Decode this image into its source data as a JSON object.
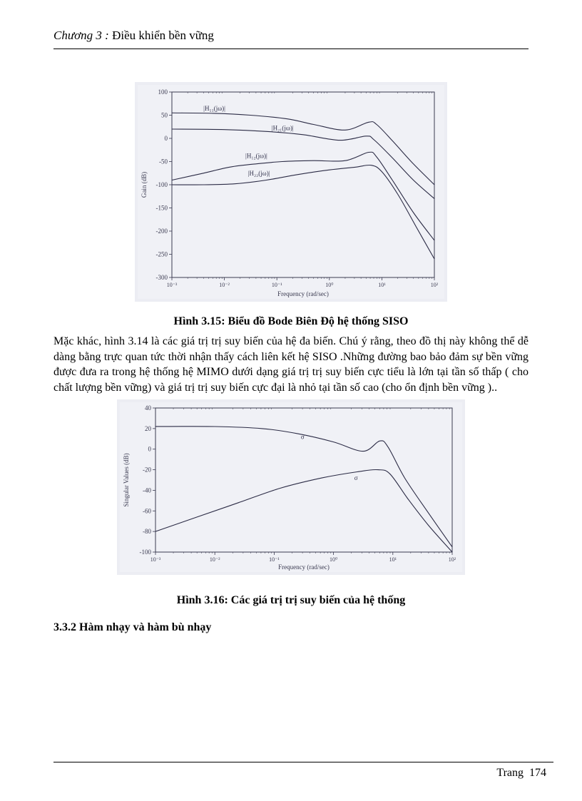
{
  "header": {
    "chapter_label": "Chương 3 :",
    "chapter_title": " Điều khiển bền vững"
  },
  "figure1": {
    "caption": "Hình 3.15: Biểu đồ Bode Biên Độ hệ thống SISO",
    "bg": "#ecedf3",
    "plot_bg": "#f0f1f6",
    "axis_color": "#3a3a50",
    "curve_color": "#2b2b45",
    "x_label": "Frequency (rad/sec)",
    "y_label": "Gain (dB)",
    "y_ticks": [
      "100",
      "50",
      "0",
      "-50",
      "-100",
      "-150",
      "-200",
      "-250",
      "-300"
    ],
    "y_range": [
      -300,
      100
    ],
    "x_ticks": [
      "10⁻³",
      "10⁻²",
      "10⁻¹",
      "10⁰",
      "10¹",
      "10²"
    ],
    "x_range_dec": [
      -3,
      2
    ],
    "series": {
      "H11": {
        "label": "|H₁₁(jω)|",
        "label_pos_dec": [
          -2.4,
          60
        ],
        "pts": [
          [
            -3,
            55
          ],
          [
            -2.2,
            54
          ],
          [
            -1.5,
            50
          ],
          [
            -0.8,
            42
          ],
          [
            -0.3,
            30
          ],
          [
            0.3,
            18
          ],
          [
            0.75,
            35
          ],
          [
            0.9,
            30
          ],
          [
            1.2,
            -5
          ],
          [
            1.6,
            -55
          ],
          [
            2,
            -100
          ]
        ]
      },
      "H21": {
        "label": "|H₂₁(jω)|",
        "label_pos_dec": [
          -1.1,
          18
        ],
        "pts": [
          [
            -3,
            20
          ],
          [
            -2,
            19
          ],
          [
            -1.2,
            15
          ],
          [
            -0.5,
            8
          ],
          [
            0.2,
            -4
          ],
          [
            0.7,
            5
          ],
          [
            0.85,
            -3
          ],
          [
            1.2,
            -42
          ],
          [
            1.6,
            -90
          ],
          [
            2,
            -130
          ]
        ]
      },
      "H12": {
        "label": "|H₁₂(jω)|",
        "label_pos_dec": [
          -1.6,
          -42
        ],
        "pts": [
          [
            -3,
            -90
          ],
          [
            -2.4,
            -75
          ],
          [
            -1.9,
            -62
          ],
          [
            -1.4,
            -55
          ],
          [
            -0.9,
            -50
          ],
          [
            -0.3,
            -48
          ],
          [
            0.3,
            -48
          ],
          [
            0.75,
            -30
          ],
          [
            0.9,
            -40
          ],
          [
            1.2,
            -90
          ],
          [
            1.6,
            -160
          ],
          [
            2,
            -220
          ]
        ]
      },
      "H22": {
        "label": "|H₂₂(jω)|",
        "label_pos_dec": [
          -1.55,
          -80
        ],
        "pts": [
          [
            -3,
            -100
          ],
          [
            -2.4,
            -100
          ],
          [
            -1.8,
            -98
          ],
          [
            -1.2,
            -90
          ],
          [
            -0.6,
            -78
          ],
          [
            0,
            -68
          ],
          [
            0.5,
            -62
          ],
          [
            0.8,
            -58
          ],
          [
            1.0,
            -72
          ],
          [
            1.3,
            -120
          ],
          [
            1.65,
            -190
          ],
          [
            2,
            -260
          ]
        ]
      }
    }
  },
  "paragraph1": "Mặc khác, hình 3.14 là các giá trị trị suy biến của hệ đa biến. Chú ý rằng, theo đồ thị này không thể dễ dàng  bằng trực quan tức thời nhận thấy cách liên kết hệ SISO .Những đường bao bảo đảm sự bền vững được đưa ra trong hệ thống hệ MIMO dưới dạng giá trị trị suy biến cực tiểu là lớn tại tần số thấp ( cho chất lượng bền vững) và  giá trị trị suy biến cực đại là nhỏ tại tần số cao (cho ổn định bền vững )..",
  "figure2": {
    "caption": "Hình 3.16: Các giá trị trị suy biến của hệ thống",
    "bg": "#ecedf3",
    "plot_bg": "#f0f1f6",
    "axis_color": "#3a3a50",
    "curve_color": "#2b2b45",
    "x_label": "Frequency (rad/sec)",
    "y_label": "Singular Values (dB)",
    "y_ticks": [
      "40",
      "20",
      "0",
      "-20",
      "-40",
      "-60",
      "-80",
      "-100"
    ],
    "y_range": [
      -100,
      40
    ],
    "x_ticks": [
      "10⁻³",
      "10⁻²",
      "10⁻¹",
      "10⁰",
      "10¹",
      "10²"
    ],
    "x_range_dec": [
      -3,
      2
    ],
    "series": {
      "sigma_max": {
        "label": "σ̄",
        "label_pos_dec": [
          -0.55,
          10
        ],
        "pts": [
          [
            -3,
            22
          ],
          [
            -2,
            22
          ],
          [
            -1.2,
            20
          ],
          [
            -0.6,
            15
          ],
          [
            0,
            7
          ],
          [
            0.5,
            -2
          ],
          [
            0.78,
            8
          ],
          [
            0.92,
            2
          ],
          [
            1.2,
            -28
          ],
          [
            1.6,
            -62
          ],
          [
            2,
            -95
          ]
        ]
      },
      "sigma_min": {
        "label": "σ",
        "label_pos_dec": [
          0.35,
          -30
        ],
        "pts": [
          [
            -3,
            -80
          ],
          [
            -2.3,
            -66
          ],
          [
            -1.6,
            -52
          ],
          [
            -0.9,
            -38
          ],
          [
            -0.2,
            -28
          ],
          [
            0.4,
            -22
          ],
          [
            0.75,
            -20
          ],
          [
            0.95,
            -24
          ],
          [
            1.25,
            -48
          ],
          [
            1.6,
            -74
          ],
          [
            2,
            -100
          ]
        ]
      }
    }
  },
  "section_heading": "3.3.2 Hàm nhạy và hàm bù nhạy",
  "footer": {
    "page_label": "Trang",
    "page_num": "174"
  }
}
